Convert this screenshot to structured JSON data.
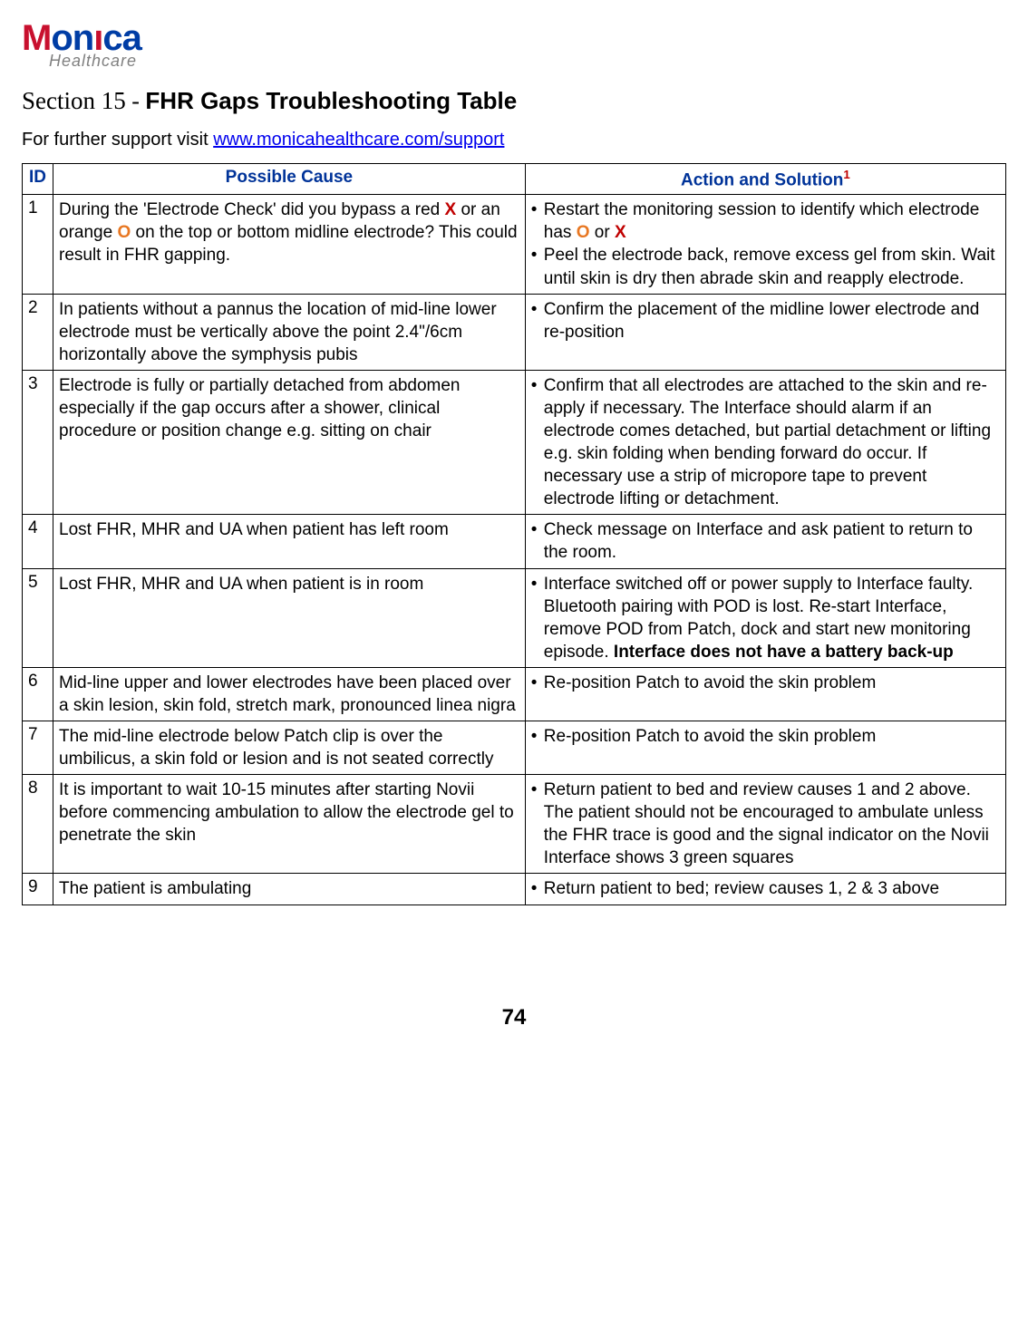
{
  "logo": {
    "brand_part1_red": "M",
    "brand_part2_blue": "on",
    "brand_part3_red": "ı",
    "brand_part4_blue": "ca",
    "tagline": "Healthcare"
  },
  "heading": {
    "section_prefix": "Section 15",
    "dash": " - ",
    "section_name": "FHR Gaps Troubleshooting Table"
  },
  "support": {
    "prefix": "For further support visit ",
    "link_text": "www.monicahealthcare.com/support",
    "link_href": "http://www.monicahealthcare.com/support"
  },
  "table": {
    "headers": {
      "id": "ID",
      "cause": "Possible Cause",
      "action": "Action and Solution",
      "action_sup": "1"
    },
    "rows": [
      {
        "id": "1",
        "cause_segments": [
          {
            "t": "During the 'Electrode Check' did you bypass a red "
          },
          {
            "t": "X",
            "cls": "redx"
          },
          {
            "t": " or an orange "
          },
          {
            "t": "O",
            "cls": "orgo"
          },
          {
            "t": " on the top or bottom midline electrode? This could result in FHR gapping."
          }
        ],
        "actions": [
          {
            "segments": [
              {
                "t": "Restart the monitoring session to identify which electrode has  "
              },
              {
                "t": "O",
                "cls": "orgo"
              },
              {
                "t": " or "
              },
              {
                "t": "X",
                "cls": "redx"
              }
            ]
          },
          {
            "segments": [
              {
                "t": "Peel the electrode back, remove excess gel from skin.  Wait until skin is dry then abrade skin and reapply electrode."
              }
            ]
          }
        ]
      },
      {
        "id": "2",
        "cause_segments": [
          {
            "t": "In patients without a pannus the location of mid-line lower electrode must be vertically above the point 2.4\"/6cm horizontally above the symphysis pubis"
          }
        ],
        "actions": [
          {
            "segments": [
              {
                "t": "Confirm the placement of the midline lower electrode and re-position"
              }
            ]
          }
        ]
      },
      {
        "id": "3",
        "cause_segments": [
          {
            "t": "Electrode is fully or partially detached from abdomen especially if the gap occurs after a shower, clinical procedure or position change e.g. sitting on chair"
          }
        ],
        "actions": [
          {
            "segments": [
              {
                "t": "Confirm that all electrodes are attached to the skin and re-apply if necessary.  The Interface should alarm if an electrode comes detached, but partial detachment or lifting e.g. skin folding when bending forward do occur.  If necessary use a strip of micropore tape to prevent electrode lifting or detachment."
              }
            ]
          }
        ]
      },
      {
        "id": "4",
        "cause_segments": [
          {
            "t": "Lost FHR, MHR and UA when patient has left room"
          }
        ],
        "actions": [
          {
            "segments": [
              {
                "t": "Check message on Interface and ask patient to return to the room."
              }
            ]
          }
        ]
      },
      {
        "id": "5",
        "cause_segments": [
          {
            "t": "Lost FHR, MHR and UA when patient is in room"
          }
        ],
        "actions": [
          {
            "segments": [
              {
                "t": "Interface switched off or power supply to Interface faulty.  Bluetooth pairing with POD is lost. Re-start Interface, remove POD from Patch, dock and start new monitoring episode. "
              },
              {
                "t": "Interface does not have a battery back-up",
                "cls": "bold"
              }
            ]
          }
        ]
      },
      {
        "id": "6",
        "cause_segments": [
          {
            "t": "Mid-line upper and lower electrodes have been placed over a skin lesion,  skin fold, stretch mark, pronounced linea nigra"
          }
        ],
        "actions": [
          {
            "segments": [
              {
                "t": "Re-position Patch to avoid the skin problem"
              }
            ]
          }
        ]
      },
      {
        "id": "7",
        "cause_segments": [
          {
            "t": "The mid-line electrode below Patch clip is over the umbilicus, a skin fold or lesion and is not seated correctly"
          }
        ],
        "actions": [
          {
            "segments": [
              {
                "t": "Re-position Patch to avoid the skin problem"
              }
            ]
          }
        ]
      },
      {
        "id": "8",
        "cause_segments": [
          {
            "t": "It is important to wait 10-15 minutes after starting Novii before commencing ambulation to allow the electrode gel to penetrate the skin"
          }
        ],
        "actions": [
          {
            "segments": [
              {
                "t": "Return patient to bed and review causes 1 and 2 above.  The patient should not be encouraged to ambulate unless the FHR trace is good and the signal indicator on the Novii Interface shows 3 green squares"
              }
            ]
          }
        ]
      },
      {
        "id": "9",
        "cause_segments": [
          {
            "t": "The patient is ambulating"
          }
        ],
        "actions": [
          {
            "segments": [
              {
                "t": "Return patient to bed; review causes 1, 2 & 3 above"
              }
            ]
          }
        ]
      }
    ]
  },
  "page_number": "74",
  "colors": {
    "header_text": "#003399",
    "red_x": "#c00000",
    "orange_o": "#e87722",
    "link": "#0000ee",
    "border": "#000000",
    "logo_red": "#c8102e",
    "logo_blue": "#003da5",
    "logo_tag": "#808080"
  }
}
